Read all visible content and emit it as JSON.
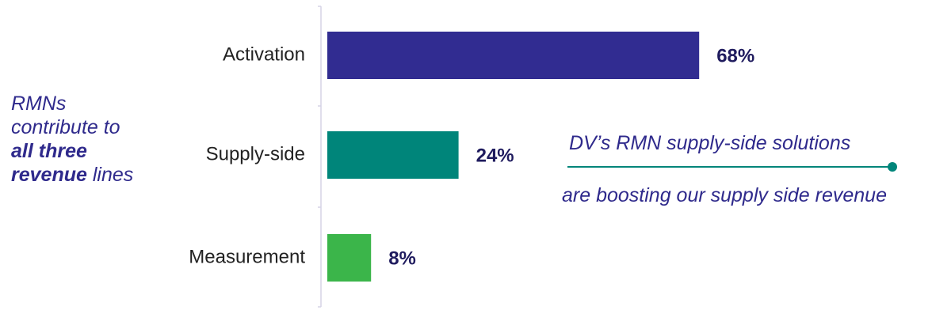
{
  "chart_data": {
    "type": "bar",
    "orientation": "horizontal",
    "categories": [
      "Activation",
      "Supply-side",
      "Measurement"
    ],
    "values": [
      68,
      24,
      8
    ],
    "value_labels": [
      "68%",
      "24%",
      "8%"
    ],
    "xlim": [
      0,
      100
    ],
    "grid": false,
    "colors": [
      "#312c91",
      "#00857a",
      "#3bb54a"
    ]
  },
  "annotations": {
    "left_note": {
      "line1": "RMNs",
      "line2": "contribute to",
      "line3_bold": "all three",
      "line4_bold": "revenue",
      "line4_rest": " lines"
    },
    "callout": {
      "line1": "DV’s RMN supply-side solutions",
      "line2": "are boosting our supply side revenue",
      "color": "#00857a"
    }
  },
  "colors": {
    "text_accent": "#2f2a8c",
    "axis": "#d5d3e6"
  }
}
